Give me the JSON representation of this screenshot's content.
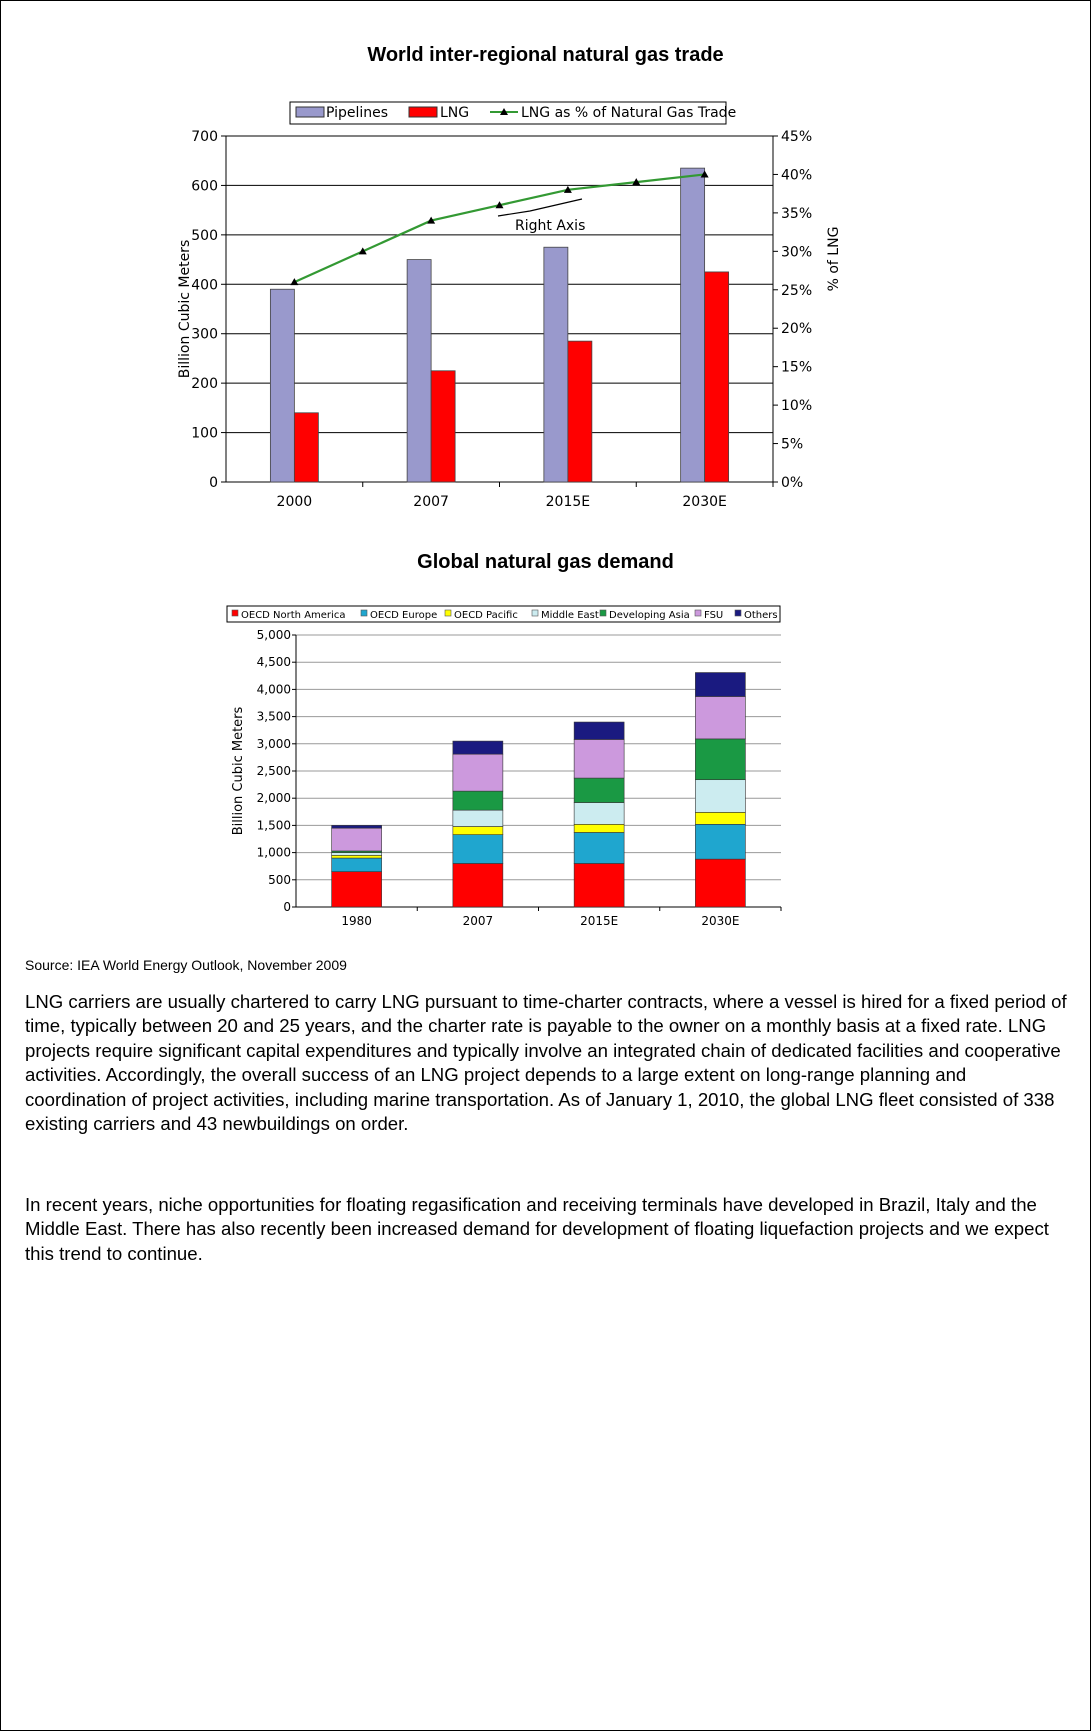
{
  "chart_data": [
    {
      "type": "bar",
      "title": "World inter-regional natural gas trade",
      "categories": [
        "2000",
        "2007",
        "2015E",
        "2030E"
      ],
      "series": [
        {
          "name": "Pipelines",
          "values": [
            390,
            450,
            475,
            635
          ],
          "color": "#9999cc"
        },
        {
          "name": "LNG",
          "values": [
            140,
            225,
            285,
            425
          ],
          "color": "#ff0000"
        }
      ],
      "line_series": {
        "name": "LNG as % of Natural Gas Trade",
        "axis": "right",
        "x_positions": [
          0,
          0.5,
          1,
          1.5,
          2,
          2.5,
          3
        ],
        "values": [
          26,
          30,
          34,
          36,
          38,
          39,
          40
        ],
        "color": "#339933"
      },
      "ylabel": "Billion Cubic Meters",
      "ylabel_right": "% of LNG",
      "ylim": [
        0,
        700
      ],
      "yticks": [
        "0",
        "100",
        "200",
        "300",
        "400",
        "500",
        "600",
        "700"
      ],
      "ylim_right": [
        0,
        45
      ],
      "yticks_right": [
        "0%",
        "5%",
        "10%",
        "15%",
        "20%",
        "25%",
        "30%",
        "35%",
        "40%",
        "45%"
      ],
      "annotation": "Right Axis",
      "legend": {
        "placement": "top",
        "labels": [
          "Pipelines",
          "LNG",
          "LNG as % of Natural Gas Trade"
        ]
      },
      "grid": true
    },
    {
      "type": "bar",
      "stacked": true,
      "title": "Global natural gas demand",
      "categories": [
        "1980",
        "2007",
        "2015E",
        "2030E"
      ],
      "series": [
        {
          "name": "OECD North America",
          "values": [
            650,
            800,
            800,
            880
          ],
          "color": "#ff0000"
        },
        {
          "name": "OECD Europe",
          "values": [
            250,
            530,
            570,
            640
          ],
          "color": "#1fa6cf"
        },
        {
          "name": "OECD Pacific",
          "values": [
            50,
            150,
            150,
            220
          ],
          "color": "#ffff00"
        },
        {
          "name": "Middle East",
          "values": [
            50,
            300,
            400,
            600
          ],
          "color": "#ccecf0"
        },
        {
          "name": "Developing Asia",
          "values": [
            30,
            350,
            450,
            750
          ],
          "color": "#1a9944"
        },
        {
          "name": "FSU",
          "values": [
            420,
            680,
            710,
            780
          ],
          "color": "#cc99dd"
        },
        {
          "name": "Others",
          "values": [
            50,
            240,
            320,
            440
          ],
          "color": "#1a1a80"
        }
      ],
      "ylabel": "Billion Cubic Meters",
      "ylim": [
        0,
        5000
      ],
      "yticks": [
        "0",
        "500",
        "1,000",
        "1,500",
        "2,000",
        "2,500",
        "3,000",
        "3,500",
        "4,000",
        "4,500",
        "5,000"
      ],
      "legend": {
        "placement": "top",
        "labels": [
          "OECD North America",
          "OECD Europe",
          "OECD Pacific",
          "Middle East",
          "Developing Asia",
          "FSU",
          "Others"
        ]
      },
      "grid": true
    }
  ],
  "source": "Source: IEA World Energy Outlook, November 2009",
  "paragraphs": [
    "LNG carriers are usually chartered to carry LNG pursuant to time-charter contracts, where a vessel is hired for a fixed period of time, typically between 20 and 25 years, and the charter rate is payable to the owner on a monthly basis at a fixed rate. LNG projects require significant capital expenditures and typically involve an integrated chain of dedicated facilities and cooperative activities. Accordingly, the overall success of an LNG project depends to a large extent on long-range planning and coordination of project activities, including marine transportation. As of January 1, 2010, the global LNG fleet consisted of 338 existing carriers and 43 newbuildings on order.",
    "In recent years, niche opportunities for floating regasification and receiving terminals have developed in Brazil, Italy and the Middle East. There has also recently been increased demand for development of floating liquefaction projects and we expect this trend to continue."
  ]
}
